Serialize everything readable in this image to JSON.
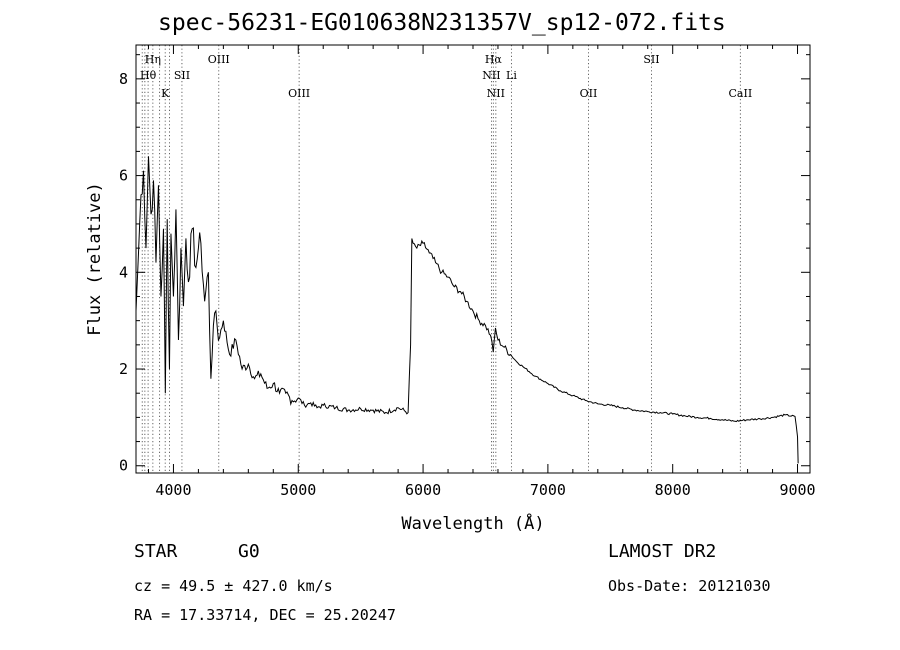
{
  "header": {
    "title": "spec-56231-EG010638N231357V_sp12-072.fits"
  },
  "info": {
    "class": "STAR",
    "subclass": "G0",
    "survey": "LAMOST DR2",
    "cz": "cz = 49.5 ± 427.0 km/s",
    "obs_date": "Obs-Date: 20121030",
    "radec": "RA =  17.33714, DEC =  25.20247"
  },
  "chart_data": {
    "type": "line",
    "xlabel": "Wavelength (Å)",
    "ylabel": "Flux (relative)",
    "xlim": [
      3700,
      9100
    ],
    "ylim": [
      -0.15,
      8.7
    ],
    "xticks": [
      4000,
      5000,
      6000,
      7000,
      8000,
      9000
    ],
    "yticks": [
      0,
      2,
      4,
      6,
      8
    ],
    "grid": false,
    "line_color": "#000000",
    "series": [
      {
        "x": [
          3700,
          3720,
          3740,
          3760,
          3780,
          3800,
          3820,
          3840,
          3860,
          3880,
          3900,
          3920,
          3935,
          3950,
          3968,
          3980,
          4000,
          4020,
          4040,
          4060,
          4080,
          4100,
          4120,
          4150,
          4180,
          4200,
          4220,
          4250,
          4280,
          4300,
          4320,
          4340,
          4360,
          4400,
          4450,
          4500,
          4550,
          4600,
          4650,
          4700,
          4750,
          4800,
          4850,
          4900,
          4950,
          5000,
          5050,
          5100,
          5150,
          5200,
          5300,
          5400,
          5500,
          5600,
          5700,
          5800,
          5880,
          5900,
          5910,
          5920,
          5950,
          6000,
          6050,
          6100,
          6150,
          6200,
          6250,
          6300,
          6350,
          6400,
          6450,
          6500,
          6540,
          6562,
          6580,
          6600,
          6650,
          6700,
          6750,
          6800,
          6900,
          7000,
          7100,
          7200,
          7300,
          7400,
          7500,
          7600,
          7700,
          7800,
          7900,
          8000,
          8100,
          8200,
          8300,
          8400,
          8500,
          8600,
          8700,
          8800,
          8900,
          8980,
          9000,
          9005
        ],
        "y": [
          3.2,
          4.4,
          5.6,
          6.1,
          4.5,
          6.4,
          5.2,
          5.9,
          4.2,
          5.8,
          3.5,
          4.9,
          1.5,
          5.1,
          2.0,
          4.8,
          3.5,
          5.3,
          2.6,
          4.5,
          3.3,
          4.7,
          3.8,
          4.9,
          4.1,
          4.5,
          4.6,
          3.4,
          4.0,
          1.8,
          2.9,
          3.2,
          2.6,
          3.0,
          2.3,
          2.6,
          2.0,
          2.1,
          1.8,
          1.9,
          1.6,
          1.7,
          1.5,
          1.5,
          1.35,
          1.4,
          1.25,
          1.3,
          1.2,
          1.25,
          1.2,
          1.15,
          1.18,
          1.15,
          1.1,
          1.2,
          1.1,
          2.5,
          4.7,
          4.6,
          4.5,
          4.6,
          4.4,
          4.2,
          4.0,
          3.9,
          3.7,
          3.6,
          3.4,
          3.2,
          3.0,
          2.9,
          2.7,
          2.35,
          2.85,
          2.6,
          2.45,
          2.3,
          2.15,
          2.05,
          1.85,
          1.7,
          1.55,
          1.45,
          1.35,
          1.28,
          1.25,
          1.2,
          1.15,
          1.12,
          1.1,
          1.07,
          1.03,
          1.0,
          0.98,
          0.95,
          0.92,
          0.95,
          0.97,
          1.0,
          1.05,
          1.02,
          0.6,
          0.05
        ]
      }
    ],
    "annotations": [
      {
        "label": "Hη",
        "wavelength": 3835,
        "row": 1
      },
      {
        "label": "Hθ",
        "wavelength": 3797,
        "row": 2
      },
      {
        "label": "K",
        "wavelength": 3934,
        "row": 3
      },
      {
        "label": "SII",
        "wavelength": 4068,
        "row": 2
      },
      {
        "label": "OIII",
        "wavelength": 4363,
        "row": 1
      },
      {
        "label": "OIII",
        "wavelength": 5007,
        "row": 3
      },
      {
        "label": "Hα",
        "wavelength": 6563,
        "row": 1
      },
      {
        "label": "NII",
        "wavelength": 6548,
        "row": 2
      },
      {
        "label": "Li",
        "wavelength": 6708,
        "row": 2
      },
      {
        "label": "NII",
        "wavelength": 6583,
        "row": 3
      },
      {
        "label": "OII",
        "wavelength": 7325,
        "row": 3
      },
      {
        "label": "SII",
        "wavelength": 7830,
        "row": 1
      },
      {
        "label": "CaII",
        "wavelength": 8542,
        "row": 3
      }
    ],
    "marker_lines": [
      3750,
      3771,
      3797,
      3835,
      3889,
      3934,
      3968,
      4068,
      4363,
      5007,
      6548,
      6563,
      6583,
      6708,
      7325,
      7830,
      8542
    ]
  }
}
